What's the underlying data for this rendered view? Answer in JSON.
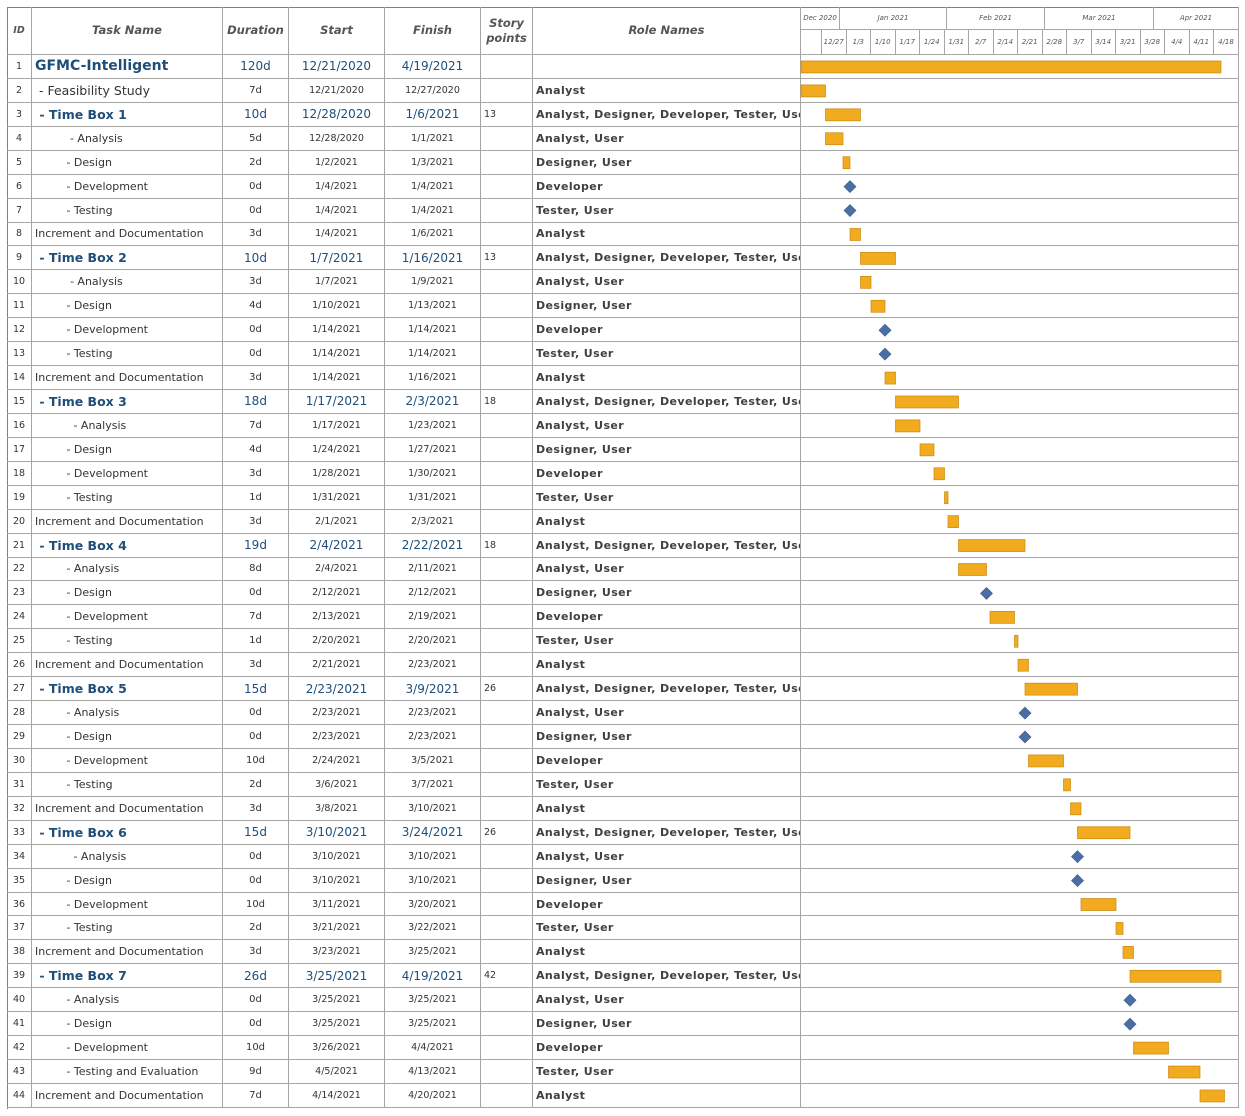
{
  "header": {
    "id": "ID",
    "task_name": "Task Name",
    "duration": "Duration",
    "start": "Start",
    "finish": "Finish",
    "story_points": "Story points",
    "role_names": "Role Names"
  },
  "timescale": {
    "months": [
      "Dec 2020",
      "Jan 2021",
      "Feb 2021",
      "Mar 2021",
      "Apr 2021"
    ],
    "weeks": [
      "12/27",
      "1/3",
      "1/10",
      "1/17",
      "1/24",
      "1/31",
      "2/7",
      "2/14",
      "2/21",
      "2/28",
      "3/7",
      "3/14",
      "3/21",
      "3/28",
      "4/4",
      "4/11",
      "4/18"
    ]
  },
  "tasks": [
    {
      "id": 1,
      "name": "GFMC-Intelligent",
      "duration": "120d",
      "start": "12/21/2020",
      "finish": "4/19/2021",
      "story_points": null,
      "roles": null
    },
    {
      "id": 2,
      "name": " - Feasibility Study",
      "duration": "7d",
      "start": "12/21/2020",
      "finish": "12/27/2020",
      "story_points": null,
      "roles": "Analyst"
    },
    {
      "id": 3,
      "name": " - Time Box 1",
      "duration": "10d",
      "start": "12/28/2020",
      "finish": "1/6/2021",
      "story_points": 13,
      "roles": "Analyst, Designer, Developer, Tester, User"
    },
    {
      "id": 4,
      "name": "          - Analysis",
      "duration": "5d",
      "start": "12/28/2020",
      "finish": "1/1/2021",
      "story_points": null,
      "roles": "Analyst, User"
    },
    {
      "id": 5,
      "name": "         - Design",
      "duration": "2d",
      "start": "1/2/2021",
      "finish": "1/3/2021",
      "story_points": null,
      "roles": "Designer, User"
    },
    {
      "id": 6,
      "name": "         - Development",
      "duration": "0d",
      "start": "1/4/2021",
      "finish": "1/4/2021",
      "story_points": null,
      "roles": "Developer"
    },
    {
      "id": 7,
      "name": "         - Testing",
      "duration": "0d",
      "start": "1/4/2021",
      "finish": "1/4/2021",
      "story_points": null,
      "roles": "Tester, User"
    },
    {
      "id": 8,
      "name": "Increment and Documentation",
      "duration": "3d",
      "start": "1/4/2021",
      "finish": "1/6/2021",
      "story_points": null,
      "roles": "Analyst"
    },
    {
      "id": 9,
      "name": " - Time Box 2",
      "duration": "10d",
      "start": "1/7/2021",
      "finish": "1/16/2021",
      "story_points": 13,
      "roles": "Analyst, Designer, Developer, Tester, User"
    },
    {
      "id": 10,
      "name": "          - Analysis",
      "duration": "3d",
      "start": "1/7/2021",
      "finish": "1/9/2021",
      "story_points": null,
      "roles": "Analyst, User"
    },
    {
      "id": 11,
      "name": "         - Design",
      "duration": "4d",
      "start": "1/10/2021",
      "finish": "1/13/2021",
      "story_points": null,
      "roles": "Designer, User"
    },
    {
      "id": 12,
      "name": "         - Development",
      "duration": "0d",
      "start": "1/14/2021",
      "finish": "1/14/2021",
      "story_points": null,
      "roles": "Developer"
    },
    {
      "id": 13,
      "name": "         - Testing",
      "duration": "0d",
      "start": "1/14/2021",
      "finish": "1/14/2021",
      "story_points": null,
      "roles": "Tester, User"
    },
    {
      "id": 14,
      "name": "Increment and Documentation",
      "duration": "3d",
      "start": "1/14/2021",
      "finish": "1/16/2021",
      "story_points": null,
      "roles": "Analyst"
    },
    {
      "id": 15,
      "name": " - Time Box 3",
      "duration": "18d",
      "start": "1/17/2021",
      "finish": "2/3/2021",
      "story_points": 18,
      "roles": "Analyst, Designer, Developer, Tester, User"
    },
    {
      "id": 16,
      "name": "           - Analysis",
      "duration": "7d",
      "start": "1/17/2021",
      "finish": "1/23/2021",
      "story_points": null,
      "roles": "Analyst, User"
    },
    {
      "id": 17,
      "name": "         - Design",
      "duration": "4d",
      "start": "1/24/2021",
      "finish": "1/27/2021",
      "story_points": null,
      "roles": "Designer, User"
    },
    {
      "id": 18,
      "name": "         - Development",
      "duration": "3d",
      "start": "1/28/2021",
      "finish": "1/30/2021",
      "story_points": null,
      "roles": "Developer"
    },
    {
      "id": 19,
      "name": "         - Testing",
      "duration": "1d",
      "start": "1/31/2021",
      "finish": "1/31/2021",
      "story_points": null,
      "roles": "Tester, User"
    },
    {
      "id": 20,
      "name": "Increment and Documentation",
      "duration": "3d",
      "start": "2/1/2021",
      "finish": "2/3/2021",
      "story_points": null,
      "roles": "Analyst"
    },
    {
      "id": 21,
      "name": " - Time Box 4",
      "duration": "19d",
      "start": "2/4/2021",
      "finish": "2/22/2021",
      "story_points": 18,
      "roles": "Analyst, Designer, Developer, Tester, User"
    },
    {
      "id": 22,
      "name": "         - Analysis",
      "duration": "8d",
      "start": "2/4/2021",
      "finish": "2/11/2021",
      "story_points": null,
      "roles": "Analyst, User"
    },
    {
      "id": 23,
      "name": "         - Design",
      "duration": "0d",
      "start": "2/12/2021",
      "finish": "2/12/2021",
      "story_points": null,
      "roles": "Designer, User"
    },
    {
      "id": 24,
      "name": "         - Development",
      "duration": "7d",
      "start": "2/13/2021",
      "finish": "2/19/2021",
      "story_points": null,
      "roles": "Developer"
    },
    {
      "id": 25,
      "name": "         - Testing",
      "duration": "1d",
      "start": "2/20/2021",
      "finish": "2/20/2021",
      "story_points": null,
      "roles": "Tester, User"
    },
    {
      "id": 26,
      "name": "Increment and Documentation",
      "duration": "3d",
      "start": "2/21/2021",
      "finish": "2/23/2021",
      "story_points": null,
      "roles": "Analyst"
    },
    {
      "id": 27,
      "name": " - Time Box 5",
      "duration": "15d",
      "start": "2/23/2021",
      "finish": "3/9/2021",
      "story_points": 26,
      "roles": "Analyst, Designer, Developer, Tester, User"
    },
    {
      "id": 28,
      "name": "         - Analysis",
      "duration": "0d",
      "start": "2/23/2021",
      "finish": "2/23/2021",
      "story_points": null,
      "roles": "Analyst, User"
    },
    {
      "id": 29,
      "name": "         - Design",
      "duration": "0d",
      "start": "2/23/2021",
      "finish": "2/23/2021",
      "story_points": null,
      "roles": "Designer, User"
    },
    {
      "id": 30,
      "name": "         - Development",
      "duration": "10d",
      "start": "2/24/2021",
      "finish": "3/5/2021",
      "story_points": null,
      "roles": "Developer"
    },
    {
      "id": 31,
      "name": "         - Testing",
      "duration": "2d",
      "start": "3/6/2021",
      "finish": "3/7/2021",
      "story_points": null,
      "roles": "Tester, User"
    },
    {
      "id": 32,
      "name": "Increment and Documentation",
      "duration": "3d",
      "start": "3/8/2021",
      "finish": "3/10/2021",
      "story_points": null,
      "roles": "Analyst"
    },
    {
      "id": 33,
      "name": " - Time Box 6",
      "duration": "15d",
      "start": "3/10/2021",
      "finish": "3/24/2021",
      "story_points": 26,
      "roles": "Analyst, Designer, Developer, Tester, User"
    },
    {
      "id": 34,
      "name": "           - Analysis",
      "duration": "0d",
      "start": "3/10/2021",
      "finish": "3/10/2021",
      "story_points": null,
      "roles": "Analyst, User"
    },
    {
      "id": 35,
      "name": "         - Design",
      "duration": "0d",
      "start": "3/10/2021",
      "finish": "3/10/2021",
      "story_points": null,
      "roles": "Designer, User"
    },
    {
      "id": 36,
      "name": "         - Development",
      "duration": "10d",
      "start": "3/11/2021",
      "finish": "3/20/2021",
      "story_points": null,
      "roles": "Developer"
    },
    {
      "id": 37,
      "name": "         - Testing",
      "duration": "2d",
      "start": "3/21/2021",
      "finish": "3/22/2021",
      "story_points": null,
      "roles": "Tester, User"
    },
    {
      "id": 38,
      "name": "Increment and Documentation",
      "duration": "3d",
      "start": "3/23/2021",
      "finish": "3/25/2021",
      "story_points": null,
      "roles": "Analyst"
    },
    {
      "id": 39,
      "name": " - Time Box 7",
      "duration": "26d",
      "start": "3/25/2021",
      "finish": "4/19/2021",
      "story_points": 42,
      "roles": "Analyst, Designer, Developer, Tester, User"
    },
    {
      "id": 40,
      "name": "         - Analysis",
      "duration": "0d",
      "start": "3/25/2021",
      "finish": "3/25/2021",
      "story_points": null,
      "roles": "Analyst, User"
    },
    {
      "id": 41,
      "name": "         - Design",
      "duration": "0d",
      "start": "3/25/2021",
      "finish": "3/25/2021",
      "story_points": null,
      "roles": "Designer, User"
    },
    {
      "id": 42,
      "name": "         - Development",
      "duration": "10d",
      "start": "3/26/2021",
      "finish": "4/4/2021",
      "story_points": null,
      "roles": "Developer"
    },
    {
      "id": 43,
      "name": "         - Testing and Evaluation",
      "duration": "9d",
      "start": "4/5/2021",
      "finish": "4/13/2021",
      "story_points": null,
      "roles": "Tester, User"
    },
    {
      "id": 44,
      "name": "Increment and Documentation",
      "duration": "7d",
      "start": "4/14/2021",
      "finish": "4/20/2021",
      "story_points": null,
      "roles": "Analyst"
    }
  ]
}
